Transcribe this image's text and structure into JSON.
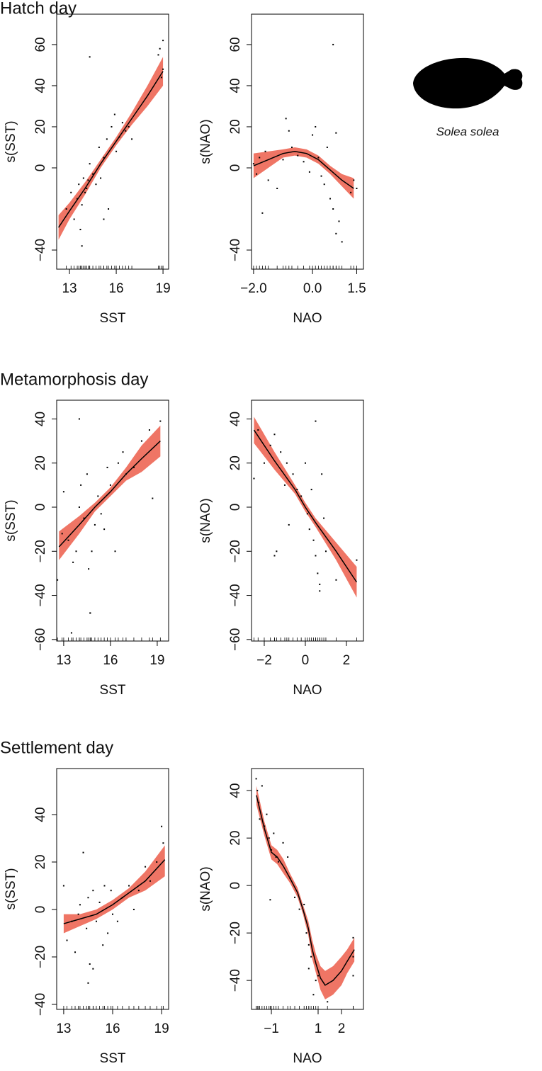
{
  "section_titles": [
    "Hatch day",
    "Metamorphosis day",
    "Settlement day"
  ],
  "species": "Solea solea",
  "chart_data": [
    {
      "type": "smooth",
      "xlabel": "SST",
      "ylabel": "s(SST)",
      "band_color": "#ef7565",
      "line_color": "#000000",
      "xlim": [
        12.18,
        19.36
      ],
      "ylim": [
        -49.3,
        74.8
      ],
      "xticks": [
        13,
        16,
        19
      ],
      "yticks": [
        {
          "value": -40,
          "label": "−40"
        },
        0,
        20,
        40,
        60
      ],
      "curve": {
        "x": [
          12.3,
          13,
          14,
          15,
          16,
          17,
          18,
          19
        ],
        "y": [
          -29,
          -21,
          -10,
          2,
          13,
          24,
          35,
          47
        ],
        "upper": [
          -23,
          -17,
          -7,
          4,
          15,
          27,
          40,
          54
        ],
        "lower": [
          -35,
          -25,
          -13,
          0,
          11,
          21,
          30,
          40
        ]
      },
      "points": {
        "x": [
          12.8,
          13.1,
          13.3,
          13.5,
          13.6,
          13.7,
          13.8,
          13.9,
          14.0,
          14.1,
          14.2,
          14.3,
          14.5,
          14.7,
          14.9,
          15.0,
          15.2,
          15.4,
          15.5,
          15.7,
          15.9,
          16.0,
          16.2,
          16.4,
          16.6,
          16.8,
          17.0,
          18.7,
          18.8,
          18.9,
          19.0,
          19.0,
          13.8,
          14.3,
          15.2
        ],
        "y": [
          -20,
          -12,
          -25,
          -15,
          -8,
          -30,
          -18,
          -5,
          -12,
          -10,
          -6,
          2,
          -3,
          -8,
          10,
          -5,
          5,
          14,
          -20,
          20,
          26,
          8,
          15,
          22,
          18,
          20,
          14,
          55,
          58,
          44,
          48,
          62,
          -38,
          54,
          -25
        ]
      }
    },
    {
      "type": "smooth",
      "xlabel": "NAO",
      "ylabel": "s(NAO)",
      "band_color": "#ef7565",
      "line_color": "#000000",
      "xlim": [
        -2.07,
        1.73
      ],
      "ylim": [
        -49.3,
        74.8
      ],
      "xticks": [
        {
          "value": -2.0,
          "label": "−2.0"
        },
        {
          "value": 0,
          "label": "0.0"
        },
        1.5
      ],
      "yticks": [
        {
          "value": -40,
          "label": "−40"
        },
        0,
        20,
        40,
        60
      ],
      "curve": {
        "x": [
          -2.0,
          -1.5,
          -1.0,
          -0.6,
          -0.2,
          0.2,
          0.6,
          1.0,
          1.4
        ],
        "y": [
          1,
          4,
          7,
          8,
          7,
          4,
          -1,
          -6,
          -10
        ],
        "upper": [
          7,
          8,
          9,
          10,
          9,
          6,
          1,
          -3,
          -5
        ],
        "lower": [
          -5,
          0,
          5,
          6,
          5,
          2,
          -3,
          -9,
          -15
        ]
      },
      "points": {
        "x": [
          -2.0,
          -1.9,
          -1.8,
          -1.6,
          -1.5,
          -1.2,
          -1.0,
          -0.9,
          -0.8,
          -0.7,
          -0.5,
          -0.3,
          -0.1,
          0.0,
          0.1,
          0.2,
          0.3,
          0.4,
          0.5,
          0.6,
          0.7,
          0.8,
          0.9,
          1.0,
          1.3,
          1.4,
          1.5,
          0.7,
          0.8,
          -1.7
        ],
        "y": [
          2,
          -3,
          5,
          8,
          -6,
          -10,
          4,
          24,
          18,
          10,
          6,
          3,
          -2,
          16,
          20,
          5,
          -4,
          -8,
          10,
          -15,
          -20,
          -32,
          -26,
          -36,
          -12,
          -6,
          -10,
          60,
          17,
          -22
        ]
      }
    },
    {
      "type": "smooth",
      "xlabel": "SST",
      "ylabel": "s(SST)",
      "band_color": "#ef7565",
      "line_color": "#000000",
      "xlim": [
        12.55,
        19.73
      ],
      "ylim": [
        -60.7,
        48.5
      ],
      "xticks": [
        13,
        16,
        19
      ],
      "yticks": [
        {
          "value": -60,
          "label": "−60"
        },
        {
          "value": -40,
          "label": "−40"
        },
        {
          "value": -20,
          "label": "−20"
        },
        0,
        20,
        40
      ],
      "curve": {
        "x": [
          12.7,
          14,
          15,
          16,
          17,
          18,
          19.2
        ],
        "y": [
          -18,
          -8,
          0,
          7,
          15,
          22,
          30
        ],
        "upper": [
          -11,
          -4,
          2,
          9,
          18,
          28,
          37
        ],
        "lower": [
          -24,
          -12,
          -2,
          5,
          12,
          16,
          23
        ]
      },
      "points": {
        "x": [
          12.6,
          12.9,
          13.0,
          13.3,
          13.6,
          13.8,
          14.0,
          14.1,
          14.3,
          14.5,
          14.6,
          14.7,
          14.8,
          15.0,
          15.2,
          15.4,
          15.6,
          15.8,
          16.0,
          16.3,
          16.5,
          16.8,
          17.0,
          17.5,
          18.0,
          18.5,
          18.7,
          19.2,
          14.7,
          13.5,
          14.0
        ],
        "y": [
          -33,
          -12,
          7,
          -15,
          -25,
          -20,
          0,
          10,
          -5,
          15,
          -28,
          -48,
          -20,
          -8,
          5,
          -3,
          -10,
          18,
          10,
          -20,
          20,
          25,
          15,
          18,
          30,
          35,
          4,
          39,
          -48,
          -57,
          40
        ]
      }
    },
    {
      "type": "smooth",
      "xlabel": "NAO",
      "ylabel": "s(NAO)",
      "band_color": "#ef7565",
      "line_color": "#000000",
      "xlim": [
        -2.62,
        2.83
      ],
      "ylim": [
        -60.7,
        48.5
      ],
      "xticks": [
        {
          "value": -2,
          "label": "−2"
        },
        0,
        2
      ],
      "yticks": [
        {
          "value": -60,
          "label": "−60"
        },
        {
          "value": -40,
          "label": "−40"
        },
        {
          "value": -20,
          "label": "−20"
        },
        0,
        20,
        40
      ],
      "curve": {
        "x": [
          -2.5,
          -1.5,
          -0.5,
          0,
          0.5,
          1.5,
          2.5
        ],
        "y": [
          35,
          21,
          8,
          0,
          -7,
          -20,
          -34
        ],
        "upper": [
          41,
          25,
          10,
          2,
          -5,
          -16,
          -27
        ],
        "lower": [
          29,
          17,
          6,
          -2,
          -9,
          -24,
          -41
        ]
      },
      "points": {
        "x": [
          -2.5,
          -2.3,
          -2.0,
          -1.7,
          -1.5,
          -1.4,
          -1.2,
          -1.0,
          -0.9,
          -0.8,
          -0.6,
          -0.4,
          -0.2,
          0.0,
          0.1,
          0.2,
          0.3,
          0.4,
          0.5,
          0.6,
          0.7,
          0.8,
          0.9,
          1.0,
          1.5,
          2.5,
          -1.5,
          0.5,
          0.7
        ],
        "y": [
          13,
          35,
          20,
          28,
          33,
          -20,
          25,
          10,
          20,
          -8,
          15,
          8,
          5,
          20,
          -3,
          -10,
          8,
          -15,
          -22,
          -30,
          -38,
          15,
          -5,
          -20,
          -33,
          -24,
          -22,
          39,
          -35
        ]
      }
    },
    {
      "type": "smooth",
      "xlabel": "SST",
      "ylabel": "s(SST)",
      "band_color": "#ef7565",
      "line_color": "#000000",
      "xlim": [
        12.57,
        19.43
      ],
      "ylim": [
        -42.1,
        59.4
      ],
      "xticks": [
        13,
        16,
        19
      ],
      "yticks": [
        {
          "value": -40,
          "label": "−40"
        },
        {
          "value": -20,
          "label": "−20"
        },
        0,
        20,
        40
      ],
      "curve": {
        "x": [
          13,
          14,
          15,
          16,
          17,
          18,
          19.2
        ],
        "y": [
          -6,
          -4,
          -2,
          2,
          7,
          12,
          21
        ],
        "upper": [
          -2,
          -2,
          0,
          4,
          9,
          16,
          27
        ],
        "lower": [
          -10,
          -7,
          -4,
          0,
          5,
          8,
          14
        ]
      },
      "points": {
        "x": [
          13.0,
          13.2,
          13.5,
          13.7,
          13.9,
          14.0,
          14.2,
          14.4,
          14.5,
          14.6,
          14.8,
          15.0,
          15.2,
          15.4,
          15.5,
          15.7,
          15.9,
          16.0,
          16.3,
          16.6,
          17.0,
          17.3,
          17.6,
          18.0,
          18.3,
          18.7,
          19.0,
          19.1,
          14.5,
          14.8
        ],
        "y": [
          10,
          -13,
          -5,
          -18,
          -2,
          2,
          24,
          -8,
          5,
          -23,
          8,
          -5,
          3,
          -15,
          10,
          -10,
          8,
          -2,
          -5,
          5,
          10,
          0,
          8,
          18,
          12,
          20,
          35,
          28,
          -31,
          -25
        ]
      }
    },
    {
      "type": "smooth",
      "xlabel": "NAO",
      "ylabel": "s(NAO)",
      "band_color": "#ef7565",
      "line_color": "#000000",
      "xlim": [
        -1.85,
        2.94
      ],
      "ylim": [
        -52.2,
        49.3
      ],
      "xticks": [
        {
          "value": -1,
          "label": "−1"
        },
        1,
        2
      ],
      "yticks": [
        {
          "value": -40,
          "label": "−40"
        },
        {
          "value": -20,
          "label": "−20"
        },
        0,
        20,
        40
      ],
      "curve": {
        "x": [
          -1.64,
          -1.3,
          -1.0,
          -0.75,
          -0.48,
          -0.2,
          0.12,
          0.35,
          0.58,
          0.75,
          0.91,
          1.1,
          1.3,
          1.64,
          2.0,
          2.24,
          2.55
        ],
        "y": [
          38,
          24,
          14,
          12,
          8,
          3,
          -3,
          -10,
          -18,
          -27,
          -33,
          -39,
          -42,
          -40,
          -36,
          -32,
          -27
        ],
        "upper": [
          42,
          27,
          17,
          15,
          11,
          5,
          -1,
          -8,
          -15,
          -23,
          -29,
          -34,
          -36,
          -34,
          -30,
          -27,
          -22
        ],
        "lower": [
          34,
          21,
          11,
          9,
          5,
          1,
          -5,
          -12,
          -21,
          -31,
          -37,
          -44,
          -48,
          -46,
          -42,
          -37,
          -32
        ]
      },
      "points": {
        "x": [
          -1.65,
          -1.6,
          -1.55,
          -1.5,
          -1.4,
          -1.3,
          -1.2,
          -1.1,
          -1.0,
          -0.9,
          -0.8,
          -0.7,
          -0.5,
          -0.3,
          -0.2,
          0.0,
          0.2,
          0.4,
          0.5,
          0.6,
          0.6,
          0.7,
          0.8,
          0.9,
          1.0,
          1.4,
          2.5,
          2.5,
          2.5,
          -1.05
        ],
        "y": [
          45,
          40,
          35,
          28,
          42,
          25,
          30,
          20,
          15,
          22,
          12,
          10,
          18,
          12,
          3,
          -5,
          -10,
          -8,
          -20,
          -25,
          -35,
          -30,
          -46,
          -40,
          -38,
          -49,
          -22,
          -30,
          -38,
          -6
        ]
      }
    }
  ]
}
